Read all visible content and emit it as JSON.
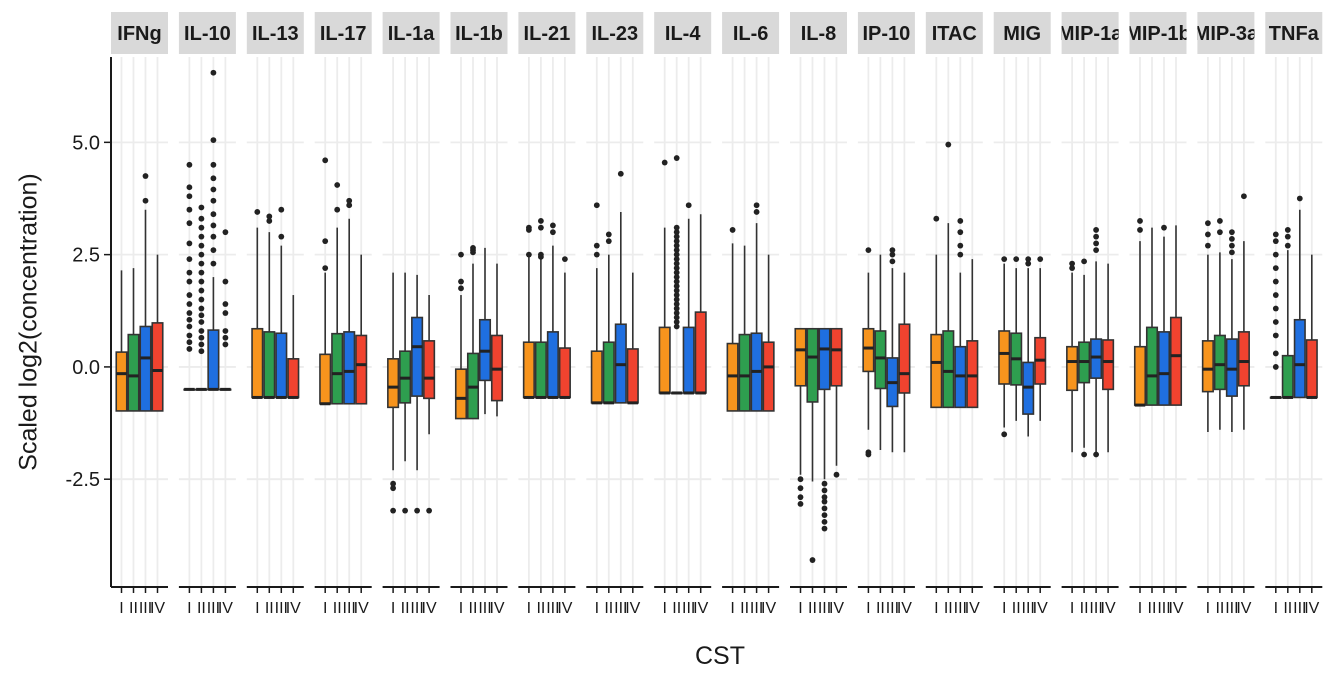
{
  "chart_data": {
    "type": "boxplot",
    "xlabel": "CST",
    "ylabel": "Scaled log2(concentration)",
    "ylim": [
      -4.9,
      6.9
    ],
    "yticks": [
      -2.5,
      0.0,
      2.5,
      5.0
    ],
    "ytick_labels": [
      "-2.5",
      "0.0",
      "2.5",
      "5.0"
    ],
    "xtick_labels": [
      "I",
      "II",
      "III",
      "IV"
    ],
    "grid": true,
    "group_colors": [
      "#F7941D",
      "#2E9E4F",
      "#1F6FE0",
      "#F0432F"
    ],
    "panels": [
      {
        "label": "IFNg",
        "groups": [
          {
            "q1": -0.98,
            "median": -0.15,
            "q3": 0.33,
            "lo": -0.98,
            "hi": 2.15,
            "outliers": []
          },
          {
            "q1": -0.98,
            "median": -0.2,
            "q3": 0.72,
            "lo": -0.98,
            "hi": 2.2,
            "outliers": []
          },
          {
            "q1": -0.98,
            "median": 0.2,
            "q3": 0.9,
            "lo": -0.98,
            "hi": 3.5,
            "outliers": [
              3.7,
              4.25
            ]
          },
          {
            "q1": -0.98,
            "median": -0.08,
            "q3": 0.98,
            "lo": -0.98,
            "hi": 2.5,
            "outliers": []
          }
        ]
      },
      {
        "label": "IL-10",
        "groups": [
          {
            "q1": -0.5,
            "median": -0.5,
            "q3": -0.5,
            "lo": -0.5,
            "hi": -0.5,
            "outliers": [
              0.4,
              0.55,
              0.7,
              0.9,
              1.05,
              1.2,
              1.4,
              1.6,
              1.9,
              2.1,
              2.4,
              2.75,
              3.2,
              3.5,
              3.8,
              4.0,
              4.5
            ]
          },
          {
            "q1": -0.5,
            "median": -0.5,
            "q3": -0.5,
            "lo": -0.5,
            "hi": -0.5,
            "outliers": [
              0.35,
              0.5,
              0.65,
              0.8,
              1.0,
              1.15,
              1.3,
              1.5,
              1.7,
              1.9,
              2.1,
              2.3,
              2.5,
              2.7,
              2.9,
              3.1,
              3.3,
              3.55
            ]
          },
          {
            "q1": -0.5,
            "median": -0.5,
            "q3": 0.82,
            "lo": -0.5,
            "hi": 2.0,
            "outliers": [
              2.3,
              2.6,
              2.9,
              3.15,
              3.4,
              3.7,
              3.95,
              4.2,
              4.5,
              5.05,
              6.55
            ]
          },
          {
            "q1": -0.5,
            "median": -0.5,
            "q3": -0.5,
            "lo": -0.5,
            "hi": -0.5,
            "outliers": [
              0.5,
              0.65,
              0.8,
              1.2,
              1.4,
              1.9,
              3.0
            ]
          }
        ]
      },
      {
        "label": "IL-13",
        "groups": [
          {
            "q1": -0.68,
            "median": -0.68,
            "q3": 0.85,
            "lo": -0.68,
            "hi": 3.1,
            "outliers": [
              3.45
            ]
          },
          {
            "q1": -0.68,
            "median": -0.68,
            "q3": 0.78,
            "lo": -0.68,
            "hi": 3.0,
            "outliers": [
              3.25,
              3.35
            ]
          },
          {
            "q1": -0.68,
            "median": -0.68,
            "q3": 0.75,
            "lo": -0.68,
            "hi": 2.7,
            "outliers": [
              2.9,
              3.5
            ]
          },
          {
            "q1": -0.68,
            "median": -0.68,
            "q3": 0.18,
            "lo": -0.68,
            "hi": 1.6,
            "outliers": []
          }
        ]
      },
      {
        "label": "IL-17",
        "groups": [
          {
            "q1": -0.82,
            "median": -0.82,
            "q3": 0.28,
            "lo": -0.82,
            "hi": 2.1,
            "outliers": [
              2.2,
              2.8,
              4.6
            ]
          },
          {
            "q1": -0.82,
            "median": -0.15,
            "q3": 0.74,
            "lo": -0.82,
            "hi": 3.1,
            "outliers": [
              3.5,
              4.05
            ]
          },
          {
            "q1": -0.82,
            "median": -0.1,
            "q3": 0.78,
            "lo": -0.82,
            "hi": 3.3,
            "outliers": [
              3.6,
              3.7
            ]
          },
          {
            "q1": -0.82,
            "median": 0.05,
            "q3": 0.7,
            "lo": -0.82,
            "hi": 2.5,
            "outliers": []
          }
        ]
      },
      {
        "label": "IL-1a",
        "groups": [
          {
            "q1": -0.9,
            "median": -0.45,
            "q3": 0.18,
            "lo": -2.3,
            "hi": 2.1,
            "outliers": [
              -2.6,
              -2.7,
              -3.2
            ]
          },
          {
            "q1": -0.8,
            "median": -0.25,
            "q3": 0.35,
            "lo": -2.1,
            "hi": 2.1,
            "outliers": [
              -3.2
            ]
          },
          {
            "q1": -0.65,
            "median": 0.45,
            "q3": 1.1,
            "lo": -2.3,
            "hi": 2.05,
            "outliers": [
              -3.2
            ]
          },
          {
            "q1": -0.7,
            "median": -0.25,
            "q3": 0.58,
            "lo": -1.5,
            "hi": 1.6,
            "outliers": [
              -3.2
            ]
          }
        ]
      },
      {
        "label": "IL-1b",
        "groups": [
          {
            "q1": -1.15,
            "median": -0.7,
            "q3": -0.05,
            "lo": -1.15,
            "hi": 1.6,
            "outliers": [
              1.75,
              1.9,
              2.5
            ]
          },
          {
            "q1": -1.15,
            "median": -0.45,
            "q3": 0.3,
            "lo": -1.15,
            "hi": 2.3,
            "outliers": [
              2.55,
              2.6,
              2.65
            ]
          },
          {
            "q1": -0.3,
            "median": 0.35,
            "q3": 1.05,
            "lo": -1.05,
            "hi": 2.65,
            "outliers": []
          },
          {
            "q1": -0.75,
            "median": -0.05,
            "q3": 0.7,
            "lo": -1.1,
            "hi": 2.3,
            "outliers": []
          }
        ]
      },
      {
        "label": "IL-21",
        "groups": [
          {
            "q1": -0.68,
            "median": -0.68,
            "q3": 0.55,
            "lo": -0.68,
            "hi": 2.45,
            "outliers": [
              2.5,
              3.05,
              3.1
            ]
          },
          {
            "q1": -0.68,
            "median": -0.68,
            "q3": 0.55,
            "lo": -0.68,
            "hi": 2.4,
            "outliers": [
              2.45,
              2.5,
              3.1,
              3.25
            ]
          },
          {
            "q1": -0.68,
            "median": -0.68,
            "q3": 0.78,
            "lo": -0.68,
            "hi": 2.7,
            "outliers": [
              3.0,
              3.15
            ]
          },
          {
            "q1": -0.68,
            "median": -0.68,
            "q3": 0.42,
            "lo": -0.68,
            "hi": 2.1,
            "outliers": [
              2.4
            ]
          }
        ]
      },
      {
        "label": "IL-23",
        "groups": [
          {
            "q1": -0.8,
            "median": -0.8,
            "q3": 0.35,
            "lo": -0.8,
            "hi": 2.2,
            "outliers": [
              2.5,
              2.7,
              3.6
            ]
          },
          {
            "q1": -0.8,
            "median": -0.8,
            "q3": 0.55,
            "lo": -0.8,
            "hi": 2.5,
            "outliers": [
              2.8,
              2.95
            ]
          },
          {
            "q1": -0.8,
            "median": 0.05,
            "q3": 0.95,
            "lo": -0.8,
            "hi": 3.45,
            "outliers": [
              4.3
            ]
          },
          {
            "q1": -0.8,
            "median": -0.8,
            "q3": 0.4,
            "lo": -0.8,
            "hi": 2.1,
            "outliers": []
          }
        ]
      },
      {
        "label": "IL-4",
        "groups": [
          {
            "q1": -0.58,
            "median": -0.58,
            "q3": 0.88,
            "lo": -0.58,
            "hi": 3.1,
            "outliers": [
              4.55
            ]
          },
          {
            "q1": -0.58,
            "median": -0.58,
            "q3": -0.58,
            "lo": -0.58,
            "hi": -0.58,
            "outliers": [
              0.9,
              1.0,
              1.1,
              1.2,
              1.3,
              1.4,
              1.5,
              1.6,
              1.7,
              1.8,
              1.9,
              2.0,
              2.1,
              2.2,
              2.3,
              2.4,
              2.5,
              2.6,
              2.7,
              2.8,
              2.9,
              3.0,
              3.1,
              4.65
            ]
          },
          {
            "q1": -0.58,
            "median": -0.58,
            "q3": 0.88,
            "lo": -0.58,
            "hi": 3.3,
            "outliers": [
              3.6
            ]
          },
          {
            "q1": -0.58,
            "median": -0.58,
            "q3": 1.22,
            "lo": -0.58,
            "hi": 3.4,
            "outliers": []
          }
        ]
      },
      {
        "label": "IL-6",
        "groups": [
          {
            "q1": -0.98,
            "median": -0.2,
            "q3": 0.52,
            "lo": -0.98,
            "hi": 2.75,
            "outliers": [
              3.05
            ]
          },
          {
            "q1": -0.98,
            "median": -0.2,
            "q3": 0.72,
            "lo": -0.98,
            "hi": 2.7,
            "outliers": []
          },
          {
            "q1": -0.98,
            "median": -0.1,
            "q3": 0.75,
            "lo": -0.98,
            "hi": 3.2,
            "outliers": [
              3.45,
              3.6
            ]
          },
          {
            "q1": -0.98,
            "median": 0.0,
            "q3": 0.55,
            "lo": -0.98,
            "hi": 2.5,
            "outliers": []
          }
        ]
      },
      {
        "label": "IL-8",
        "groups": [
          {
            "q1": -0.42,
            "median": 0.38,
            "q3": 0.85,
            "lo": -2.4,
            "hi": 0.85,
            "outliers": [
              -2.5,
              -2.7,
              -2.9,
              -3.05
            ]
          },
          {
            "q1": -0.78,
            "median": 0.22,
            "q3": 0.85,
            "lo": -2.55,
            "hi": 0.85,
            "outliers": [
              -4.3
            ]
          },
          {
            "q1": -0.5,
            "median": 0.4,
            "q3": 0.85,
            "lo": -2.5,
            "hi": 0.85,
            "outliers": [
              -2.6,
              -2.75,
              -2.9,
              -3.0,
              -3.15,
              -3.3,
              -3.45,
              -3.6
            ]
          },
          {
            "q1": -0.42,
            "median": 0.38,
            "q3": 0.85,
            "lo": -2.2,
            "hi": 0.85,
            "outliers": [
              -2.4
            ]
          }
        ]
      },
      {
        "label": "IP-10",
        "groups": [
          {
            "q1": -0.1,
            "median": 0.42,
            "q3": 0.85,
            "lo": -1.4,
            "hi": 2.1,
            "outliers": [
              -1.9,
              -1.95,
              2.6
            ]
          },
          {
            "q1": -0.48,
            "median": 0.2,
            "q3": 0.8,
            "lo": -1.85,
            "hi": 2.5,
            "outliers": []
          },
          {
            "q1": -0.88,
            "median": -0.35,
            "q3": 0.2,
            "lo": -1.9,
            "hi": 2.2,
            "outliers": [
              2.35,
              2.5,
              2.6
            ]
          },
          {
            "q1": -0.58,
            "median": -0.15,
            "q3": 0.95,
            "lo": -1.9,
            "hi": 2.1,
            "outliers": []
          }
        ]
      },
      {
        "label": "ITAC",
        "groups": [
          {
            "q1": -0.9,
            "median": 0.1,
            "q3": 0.72,
            "lo": -0.9,
            "hi": 2.5,
            "outliers": [
              3.3
            ]
          },
          {
            "q1": -0.9,
            "median": -0.1,
            "q3": 0.8,
            "lo": -0.9,
            "hi": 3.2,
            "outliers": [
              4.95
            ]
          },
          {
            "q1": -0.9,
            "median": -0.2,
            "q3": 0.45,
            "lo": -0.9,
            "hi": 2.1,
            "outliers": [
              2.5,
              2.7,
              3.0,
              3.25
            ]
          },
          {
            "q1": -0.9,
            "median": -0.2,
            "q3": 0.58,
            "lo": -0.9,
            "hi": 2.4,
            "outliers": []
          }
        ]
      },
      {
        "label": "MIG",
        "groups": [
          {
            "q1": -0.38,
            "median": 0.3,
            "q3": 0.8,
            "lo": -1.35,
            "hi": 2.3,
            "outliers": [
              -1.5,
              2.4
            ]
          },
          {
            "q1": -0.4,
            "median": 0.18,
            "q3": 0.75,
            "lo": -1.2,
            "hi": 2.2,
            "outliers": [
              2.4
            ]
          },
          {
            "q1": -1.05,
            "median": -0.45,
            "q3": 0.1,
            "lo": -1.55,
            "hi": 2.2,
            "outliers": [
              2.3,
              2.4
            ]
          },
          {
            "q1": -0.38,
            "median": 0.15,
            "q3": 0.65,
            "lo": -1.2,
            "hi": 2.2,
            "outliers": [
              2.4
            ]
          }
        ]
      },
      {
        "label": "MIP-1a",
        "groups": [
          {
            "q1": -0.52,
            "median": 0.12,
            "q3": 0.45,
            "lo": -1.9,
            "hi": 2.1,
            "outliers": [
              2.2,
              2.3
            ]
          },
          {
            "q1": -0.35,
            "median": 0.12,
            "q3": 0.55,
            "lo": -1.8,
            "hi": 2.05,
            "outliers": [
              -1.95,
              2.35
            ]
          },
          {
            "q1": -0.25,
            "median": 0.22,
            "q3": 0.62,
            "lo": -1.9,
            "hi": 2.35,
            "outliers": [
              -1.95,
              2.6,
              2.75,
              2.9,
              3.05
            ]
          },
          {
            "q1": -0.5,
            "median": 0.12,
            "q3": 0.6,
            "lo": -1.9,
            "hi": 2.3,
            "outliers": []
          }
        ]
      },
      {
        "label": "MIP-1b",
        "groups": [
          {
            "q1": -0.85,
            "median": -0.85,
            "q3": 0.45,
            "lo": -0.85,
            "hi": 2.8,
            "outliers": [
              3.05,
              3.25
            ]
          },
          {
            "q1": -0.85,
            "median": -0.2,
            "q3": 0.88,
            "lo": -0.85,
            "hi": 3.1,
            "outliers": []
          },
          {
            "q1": -0.85,
            "median": -0.15,
            "q3": 0.78,
            "lo": -0.85,
            "hi": 2.9,
            "outliers": [
              3.1
            ]
          },
          {
            "q1": -0.85,
            "median": 0.25,
            "q3": 1.1,
            "lo": -0.85,
            "hi": 3.15,
            "outliers": []
          }
        ]
      },
      {
        "label": "MIP-3a",
        "groups": [
          {
            "q1": -0.55,
            "median": -0.05,
            "q3": 0.58,
            "lo": -1.45,
            "hi": 2.5,
            "outliers": [
              2.7,
              2.95,
              3.2
            ]
          },
          {
            "q1": -0.5,
            "median": 0.05,
            "q3": 0.7,
            "lo": -1.4,
            "hi": 2.55,
            "outliers": [
              3.0,
              3.25
            ]
          },
          {
            "q1": -0.65,
            "median": -0.05,
            "q3": 0.62,
            "lo": -1.45,
            "hi": 2.4,
            "outliers": [
              2.55,
              2.7,
              2.85,
              3.0
            ]
          },
          {
            "q1": -0.42,
            "median": 0.12,
            "q3": 0.78,
            "lo": -1.4,
            "hi": 2.8,
            "outliers": [
              3.8
            ]
          }
        ]
      },
      {
        "label": "TNFa",
        "groups": [
          {
            "q1": -0.68,
            "median": -0.68,
            "q3": -0.68,
            "lo": -0.68,
            "hi": -0.68,
            "outliers": [
              0.0,
              0.3,
              0.7,
              1.0,
              1.3,
              1.6,
              1.9,
              2.2,
              2.5,
              2.8,
              2.95
            ]
          },
          {
            "q1": -0.68,
            "median": -0.68,
            "q3": 0.25,
            "lo": -0.68,
            "hi": 2.6,
            "outliers": [
              2.7,
              2.9,
              3.05
            ]
          },
          {
            "q1": -0.68,
            "median": 0.05,
            "q3": 1.05,
            "lo": -0.68,
            "hi": 3.5,
            "outliers": [
              3.75
            ]
          },
          {
            "q1": -0.68,
            "median": -0.68,
            "q3": 0.6,
            "lo": -0.68,
            "hi": 2.5,
            "outliers": []
          }
        ]
      }
    ]
  }
}
